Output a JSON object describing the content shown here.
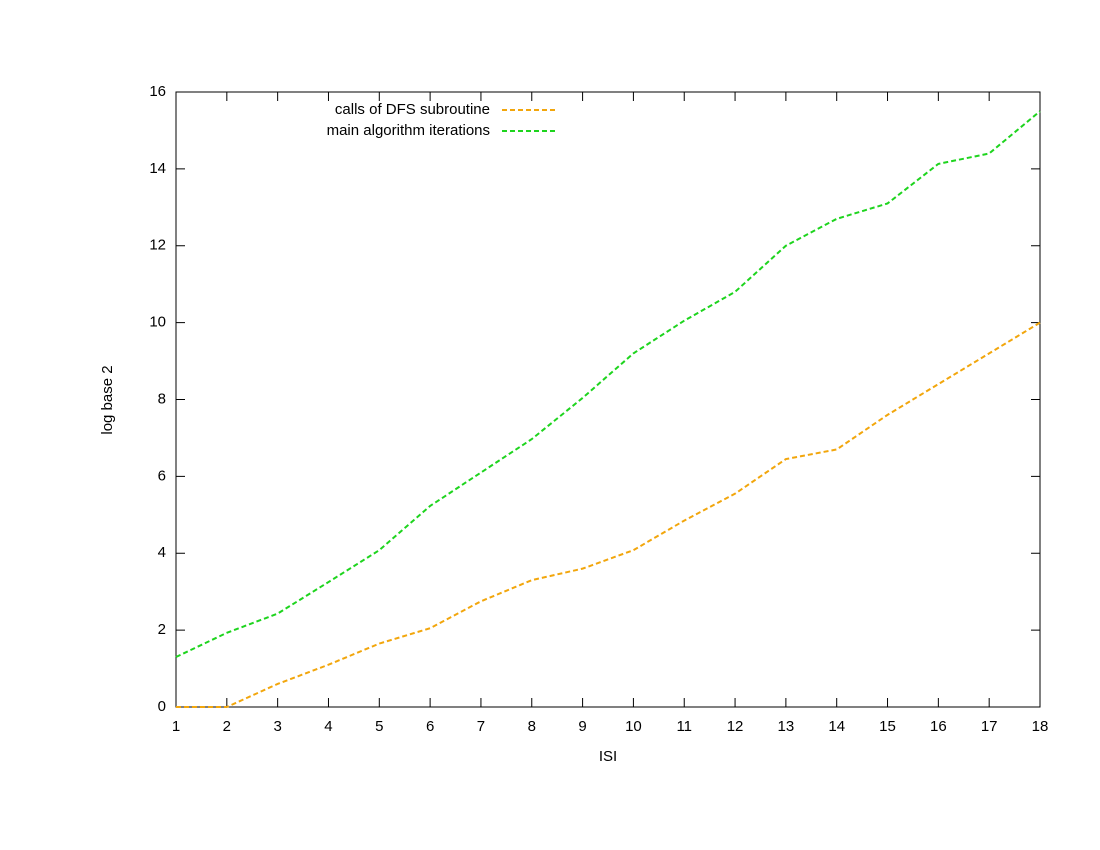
{
  "chart_data": {
    "type": "line",
    "x_label": "ISI",
    "y_label": "log base 2",
    "x": [
      1,
      2,
      3,
      4,
      5,
      6,
      7,
      8,
      9,
      10,
      11,
      12,
      13,
      14,
      15,
      16,
      17,
      18
    ],
    "series": [
      {
        "name": "calls of DFS subroutine",
        "color": "#f2a60c",
        "values": [
          0,
          0,
          0.6,
          1.1,
          1.65,
          2.05,
          2.75,
          3.3,
          3.6,
          4.08,
          4.85,
          5.55,
          6.45,
          6.7,
          7.6,
          8.4,
          9.2,
          10.0
        ]
      },
      {
        "name": "main algorithm iterations",
        "color": "#1ed41e",
        "values": [
          1.3,
          1.93,
          2.43,
          3.25,
          4.08,
          5.23,
          6.1,
          6.97,
          8.04,
          9.2,
          10.05,
          10.8,
          12.0,
          12.7,
          13.1,
          14.13,
          14.4,
          15.5
        ]
      }
    ],
    "xlim": [
      1,
      18
    ],
    "xticks": [
      1,
      2,
      3,
      4,
      5,
      6,
      7,
      8,
      9,
      10,
      11,
      12,
      13,
      14,
      15,
      16,
      17,
      18
    ],
    "ylim": [
      0,
      16
    ],
    "yticks": [
      0,
      2,
      4,
      6,
      8,
      10,
      12,
      14,
      16
    ],
    "grid": false,
    "legend_position": "top-left",
    "dashed": true
  }
}
